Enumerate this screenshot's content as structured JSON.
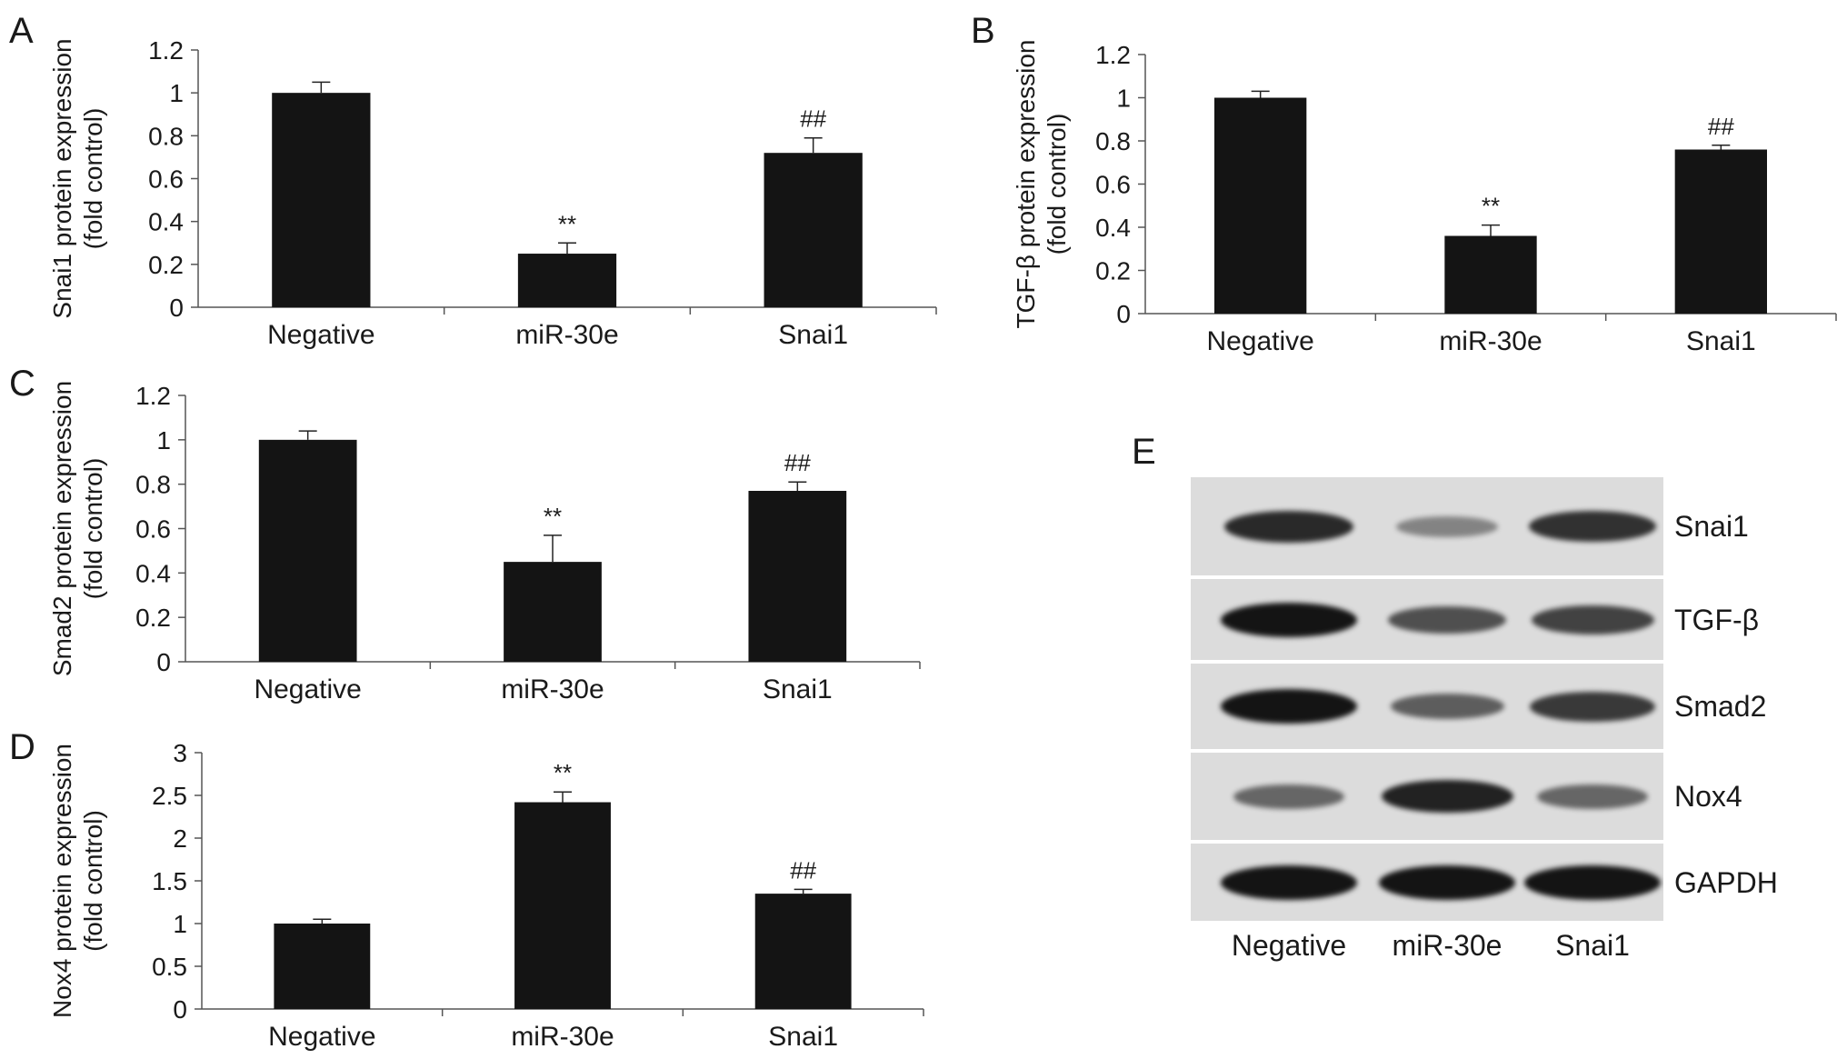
{
  "panels": {
    "A": {
      "letter": "A"
    },
    "B": {
      "letter": "B"
    },
    "C": {
      "letter": "C"
    },
    "D": {
      "letter": "D"
    },
    "E": {
      "letter": "E"
    }
  },
  "chart_data": [
    {
      "panel": "A",
      "type": "bar",
      "categories": [
        "Negative",
        "miR-30e",
        "Snai1"
      ],
      "values": [
        1.0,
        0.25,
        0.72
      ],
      "errors": [
        0.05,
        0.05,
        0.07
      ],
      "annotations": [
        "",
        "**",
        "##"
      ],
      "ylabel": [
        "Snai1 protein expression",
        "(fold control)"
      ],
      "ylim": [
        0,
        1.2
      ],
      "yticks": [
        "0",
        "0.2",
        "0.4",
        "0.6",
        "0.8",
        "1",
        "1.2"
      ],
      "ytick_values": [
        0,
        0.2,
        0.4,
        0.6,
        0.8,
        1.0,
        1.2
      ],
      "grid": false,
      "bar_color": "#141414"
    },
    {
      "panel": "B",
      "type": "bar",
      "categories": [
        "Negative",
        "miR-30e",
        "Snai1"
      ],
      "values": [
        1.0,
        0.36,
        0.76
      ],
      "errors": [
        0.03,
        0.05,
        0.02
      ],
      "annotations": [
        "",
        "**",
        "##"
      ],
      "ylabel": [
        "TGF-β protein expression",
        "(fold control)"
      ],
      "ylim": [
        0,
        1.2
      ],
      "yticks": [
        "0",
        "0.2",
        "0.4",
        "0.6",
        "0.8",
        "1",
        "1.2"
      ],
      "ytick_values": [
        0,
        0.2,
        0.4,
        0.6,
        0.8,
        1.0,
        1.2
      ],
      "grid": false,
      "bar_color": "#141414"
    },
    {
      "panel": "C",
      "type": "bar",
      "categories": [
        "Negative",
        "miR-30e",
        "Snai1"
      ],
      "values": [
        1.0,
        0.45,
        0.77
      ],
      "errors": [
        0.04,
        0.12,
        0.04
      ],
      "annotations": [
        "",
        "**",
        "##"
      ],
      "ylabel": [
        "Smad2 protein expression",
        "(fold control)"
      ],
      "ylim": [
        0,
        1.2
      ],
      "yticks": [
        "0",
        "0.2",
        "0.4",
        "0.6",
        "0.8",
        "1",
        "1.2"
      ],
      "ytick_values": [
        0,
        0.2,
        0.4,
        0.6,
        0.8,
        1.0,
        1.2
      ],
      "grid": false,
      "bar_color": "#141414"
    },
    {
      "panel": "D",
      "type": "bar",
      "categories": [
        "Negative",
        "miR-30e",
        "Snai1"
      ],
      "values": [
        1.0,
        2.42,
        1.35
      ],
      "errors": [
        0.05,
        0.12,
        0.05
      ],
      "annotations": [
        "",
        "**",
        "##"
      ],
      "ylabel": [
        "Nox4 protein expression",
        "(fold control)"
      ],
      "ylim": [
        0,
        3
      ],
      "yticks": [
        "0",
        "0.5",
        "1",
        "1.5",
        "2",
        "2.5",
        "3"
      ],
      "ytick_values": [
        0,
        0.5,
        1.0,
        1.5,
        2.0,
        2.5,
        3.0
      ],
      "grid": false,
      "bar_color": "#141414"
    }
  ],
  "western_blot": {
    "rows": [
      {
        "label": "Snai1",
        "intensity": [
          0.85,
          0.25,
          0.8
        ]
      },
      {
        "label": "TGF-β",
        "intensity": [
          1.0,
          0.6,
          0.7
        ]
      },
      {
        "label": "Smad2",
        "intensity": [
          1.0,
          0.5,
          0.75
        ]
      },
      {
        "label": "Nox4",
        "intensity": [
          0.45,
          0.9,
          0.45
        ]
      },
      {
        "label": "GAPDH",
        "intensity": [
          1.0,
          1.0,
          1.0
        ]
      }
    ],
    "lanes": [
      "Negative",
      "miR-30e",
      "Snai1"
    ]
  }
}
